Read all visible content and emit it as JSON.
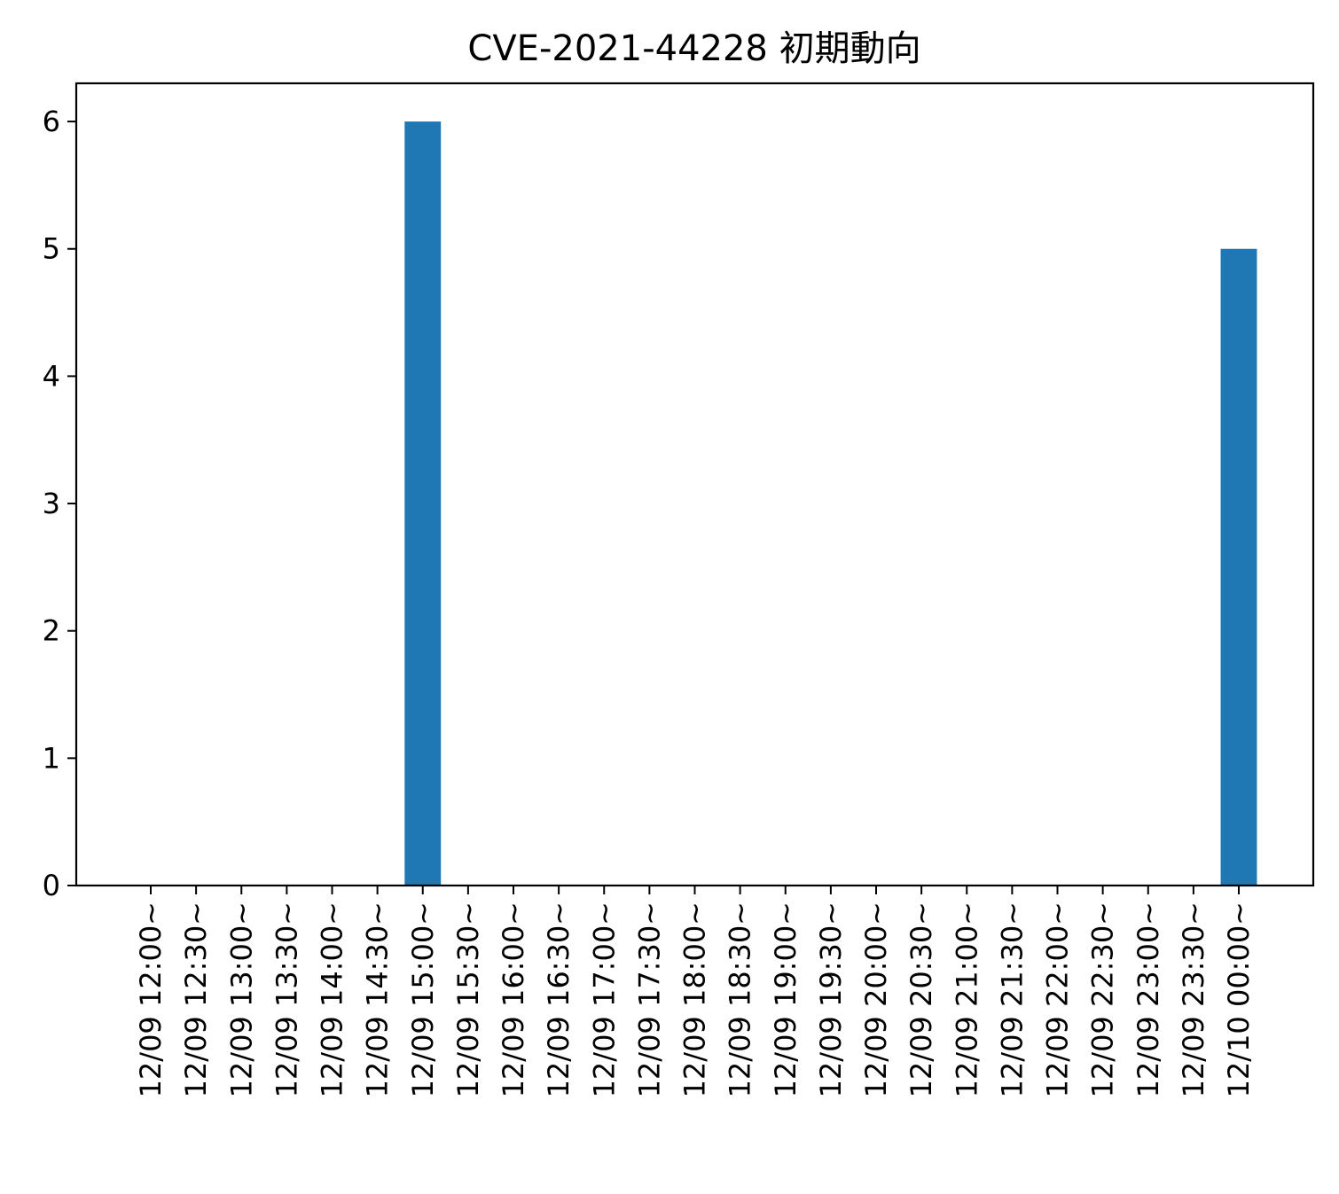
{
  "chart_data": {
    "type": "bar",
    "title": "CVE-2021-44228 初期動向",
    "xlabel": "",
    "ylabel": "",
    "categories": [
      "12/09 12:00~",
      "12/09 12:30~",
      "12/09 13:00~",
      "12/09 13:30~",
      "12/09 14:00~",
      "12/09 14:30~",
      "12/09 15:00~",
      "12/09 15:30~",
      "12/09 16:00~",
      "12/09 16:30~",
      "12/09 17:00~",
      "12/09 17:30~",
      "12/09 18:00~",
      "12/09 18:30~",
      "12/09 19:00~",
      "12/09 19:30~",
      "12/09 20:00~",
      "12/09 20:30~",
      "12/09 21:00~",
      "12/09 21:30~",
      "12/09 22:00~",
      "12/09 22:30~",
      "12/09 23:00~",
      "12/09 23:30~",
      "12/10 00:00~"
    ],
    "values": [
      0,
      0,
      0,
      0,
      0,
      0,
      6,
      0,
      0,
      0,
      0,
      0,
      0,
      0,
      0,
      0,
      0,
      0,
      0,
      0,
      0,
      0,
      0,
      0,
      5
    ],
    "ylim": [
      0,
      6.3
    ],
    "yticks": [
      "0",
      "1",
      "2",
      "3",
      "4",
      "5",
      "6"
    ],
    "bar_color": "#1f77b4",
    "grid": false,
    "legend": "none"
  }
}
